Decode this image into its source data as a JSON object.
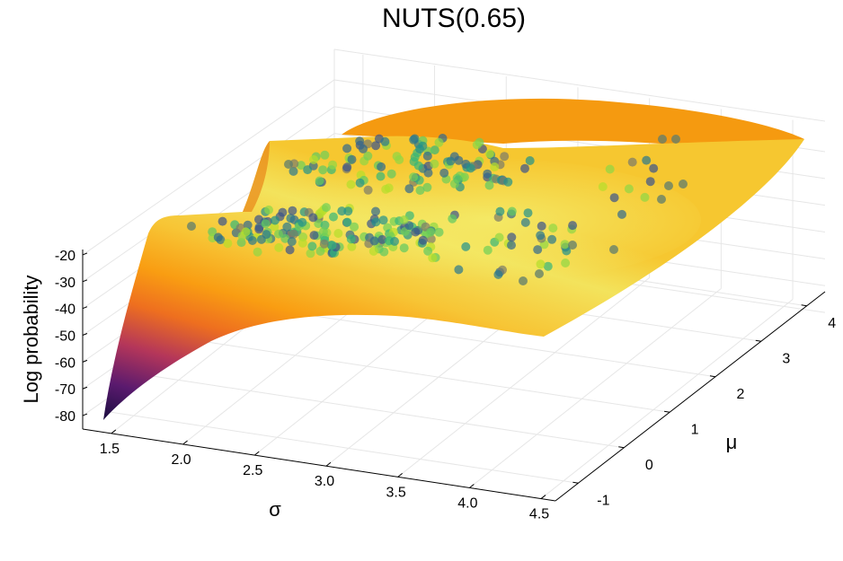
{
  "chart_data": {
    "type": "surface3d",
    "title": "NUTS(0.65)",
    "xlabel": "σ",
    "ylabel": "μ",
    "zlabel": "Log probability",
    "x_ticks": [
      "1.5",
      "2.0",
      "2.5",
      "3.0",
      "3.5",
      "4.0",
      "4.5"
    ],
    "y_ticks": [
      "-1",
      "0",
      "1",
      "2",
      "3",
      "4"
    ],
    "z_ticks": [
      "-20",
      "-30",
      "-40",
      "-50",
      "-60",
      "-70",
      "-80"
    ],
    "xlim": [
      1.3,
      4.6
    ],
    "ylim": [
      -1.5,
      4.4
    ],
    "zlim": [
      -85,
      -18
    ],
    "grid": true,
    "surface_colormap": "inferno",
    "sample_colormap": "viridis",
    "samples_description": "overlay of NUTS samples on the log-probability surface"
  }
}
